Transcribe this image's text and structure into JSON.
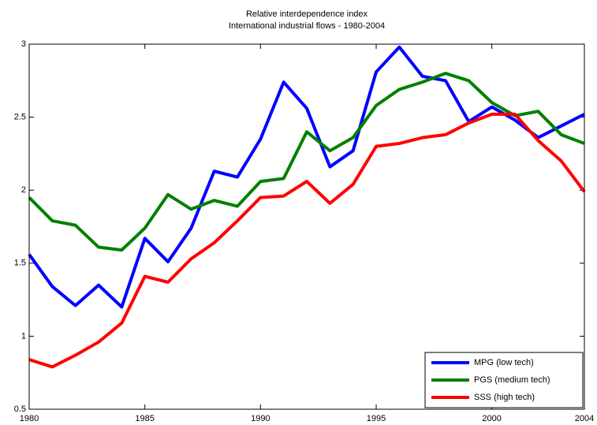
{
  "chart_data": {
    "type": "line",
    "title": "Relative interdependence index",
    "subtitle": "International industrial flows - 1980-2004",
    "x": [
      1980,
      1981,
      1982,
      1983,
      1984,
      1985,
      1986,
      1987,
      1988,
      1989,
      1990,
      1991,
      1992,
      1993,
      1994,
      1995,
      1996,
      1997,
      1998,
      1999,
      2000,
      2001,
      2002,
      2003,
      2004
    ],
    "series": [
      {
        "name": "MPG (low tech)",
        "color": "#0000ff",
        "values": [
          1.56,
          1.34,
          1.21,
          1.35,
          1.2,
          1.67,
          1.51,
          1.74,
          2.13,
          2.09,
          2.35,
          2.74,
          2.56,
          2.16,
          2.27,
          2.81,
          2.98,
          2.78,
          2.75,
          2.47,
          2.57,
          2.48,
          2.36,
          2.44,
          2.52
        ]
      },
      {
        "name": "PGS (medium tech)",
        "color": "#008000",
        "values": [
          1.95,
          1.79,
          1.76,
          1.61,
          1.59,
          1.74,
          1.97,
          1.87,
          1.93,
          1.89,
          2.06,
          2.08,
          2.4,
          2.27,
          2.36,
          2.58,
          2.69,
          2.74,
          2.8,
          2.75,
          2.6,
          2.51,
          2.54,
          2.38,
          2.32
        ]
      },
      {
        "name": "SSS (high tech)",
        "color": "#ff0000",
        "values": [
          0.84,
          0.79,
          0.87,
          0.96,
          1.09,
          1.41,
          1.37,
          1.53,
          1.64,
          1.79,
          1.95,
          1.96,
          2.06,
          1.91,
          2.04,
          2.3,
          2.32,
          2.36,
          2.38,
          2.46,
          2.52,
          2.52,
          2.34,
          2.2,
          1.99
        ]
      }
    ],
    "xlim": [
      1980,
      2004
    ],
    "xticks": [
      1980,
      1985,
      1990,
      1995,
      2000,
      2004
    ],
    "ylim": [
      0.5,
      3
    ],
    "yticks": [
      0.5,
      1,
      1.5,
      2,
      2.5,
      3
    ],
    "legend": "southeast"
  }
}
